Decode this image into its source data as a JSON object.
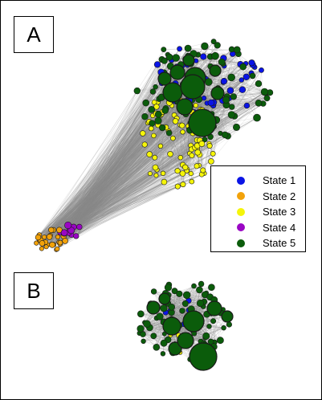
{
  "panels": {
    "a": "A",
    "b": "B"
  },
  "legend": [
    {
      "label": "State 1",
      "color": "#0a14e6"
    },
    {
      "label": "State 2",
      "color": "#f2a20a"
    },
    {
      "label": "State 3",
      "color": "#f5f50a"
    },
    {
      "label": "State 4",
      "color": "#9a06c4"
    },
    {
      "label": "State 5",
      "color": "#0b5c0b"
    }
  ],
  "edge_color": "#8a8a8a"
}
